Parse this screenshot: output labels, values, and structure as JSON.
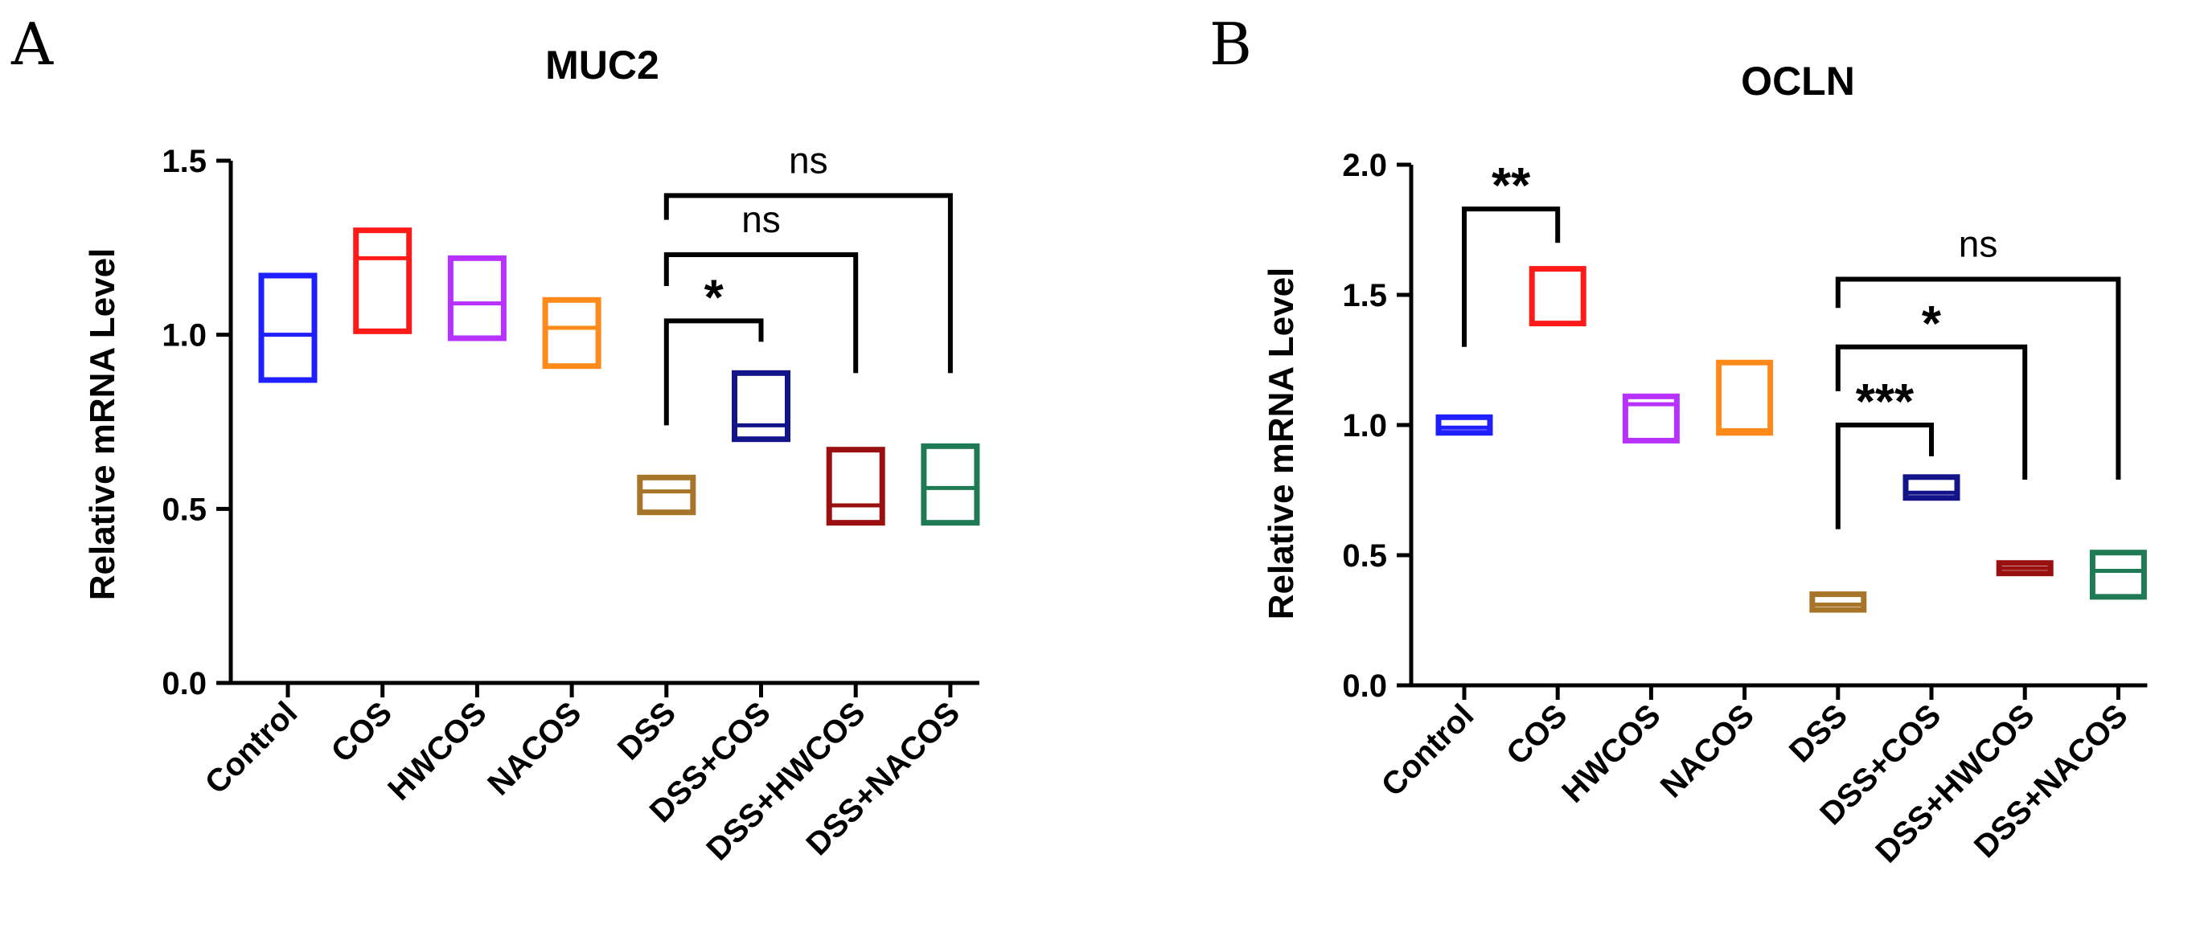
{
  "chart_data": [
    {
      "panel": "A",
      "type": "box",
      "title": "MUC2",
      "ylabel": "Relative mRNA Level",
      "xlabel": "",
      "ylim": [
        0,
        1.5
      ],
      "yticks": [
        0.0,
        0.5,
        1.0,
        1.5
      ],
      "ytick_labels": [
        "0.0",
        "0.5",
        "1.0",
        "1.5"
      ],
      "categories": [
        "Control",
        "COS",
        "HWCOS",
        "NACOS",
        "DSS",
        "DSS+COS",
        "DSS+HWCOS",
        "DSS+NACOS"
      ],
      "series": [
        {
          "name": "Control",
          "min": 0.87,
          "median": 1.0,
          "max": 1.17,
          "color": "#1f1fff"
        },
        {
          "name": "COS",
          "min": 1.01,
          "median": 1.22,
          "max": 1.3,
          "color": "#ff1a1a"
        },
        {
          "name": "HWCOS",
          "min": 0.99,
          "median": 1.09,
          "max": 1.22,
          "color": "#b832ff"
        },
        {
          "name": "NACOS",
          "min": 0.91,
          "median": 1.02,
          "max": 1.1,
          "color": "#ff8a1a"
        },
        {
          "name": "DSS",
          "min": 0.49,
          "median": 0.55,
          "max": 0.59,
          "color": "#a8742a"
        },
        {
          "name": "DSS+COS",
          "min": 0.7,
          "median": 0.74,
          "max": 0.89,
          "color": "#14148a"
        },
        {
          "name": "DSS+HWCOS",
          "min": 0.46,
          "median": 0.51,
          "max": 0.67,
          "color": "#9a0f0f"
        },
        {
          "name": "DSS+NACOS",
          "min": 0.46,
          "median": 0.56,
          "max": 0.68,
          "color": "#1e7a52"
        }
      ],
      "significance": [
        {
          "from": "DSS",
          "to": "DSS+COS",
          "label": "*",
          "y": 1.04,
          "left_end": 0.74,
          "right_end": 0.98
        },
        {
          "from": "DSS",
          "to": "DSS+HWCOS",
          "label": "ns",
          "y": 1.23,
          "left_end": 1.14,
          "right_end": 0.89
        },
        {
          "from": "DSS",
          "to": "DSS+NACOS",
          "label": "ns",
          "y": 1.4,
          "left_end": 1.33,
          "right_end": 0.89
        }
      ]
    },
    {
      "panel": "B",
      "type": "box",
      "title": "OCLN",
      "ylabel": "Relative mRNA Level",
      "xlabel": "",
      "ylim": [
        0,
        2.0
      ],
      "yticks": [
        0.0,
        0.5,
        1.0,
        1.5,
        2.0
      ],
      "ytick_labels": [
        "0.0",
        "0.5",
        "1.0",
        "1.5",
        "2.0"
      ],
      "categories": [
        "Control",
        "COS",
        "HWCOS",
        "NACOS",
        "DSS",
        "DSS+COS",
        "DSS+HWCOS",
        "DSS+NACOS"
      ],
      "series": [
        {
          "name": "Control",
          "min": 0.97,
          "median": 0.99,
          "max": 1.03,
          "color": "#1f1fff"
        },
        {
          "name": "COS",
          "min": 1.39,
          "median": 1.6,
          "max": 1.6,
          "color": "#ff1a1a"
        },
        {
          "name": "HWCOS",
          "min": 0.94,
          "median": 1.08,
          "max": 1.11,
          "color": "#b832ff"
        },
        {
          "name": "NACOS",
          "min": 0.97,
          "median": 0.98,
          "max": 1.24,
          "color": "#ff8a1a"
        },
        {
          "name": "DSS",
          "min": 0.29,
          "median": 0.31,
          "max": 0.35,
          "color": "#a8742a"
        },
        {
          "name": "DSS+COS",
          "min": 0.72,
          "median": 0.74,
          "max": 0.8,
          "color": "#14148a"
        },
        {
          "name": "DSS+HWCOS",
          "min": 0.43,
          "median": 0.45,
          "max": 0.47,
          "color": "#9a0f0f"
        },
        {
          "name": "DSS+NACOS",
          "min": 0.34,
          "median": 0.44,
          "max": 0.51,
          "color": "#1e7a52"
        }
      ],
      "significance": [
        {
          "from": "Control",
          "to": "COS",
          "label": "**",
          "y": 1.83,
          "left_end": 1.3,
          "right_end": 1.7
        },
        {
          "from": "DSS",
          "to": "DSS+COS",
          "label": "***",
          "y": 1.0,
          "left_end": 0.6,
          "right_end": 0.88
        },
        {
          "from": "DSS",
          "to": "DSS+HWCOS",
          "label": "*",
          "y": 1.3,
          "left_end": 1.13,
          "right_end": 0.79
        },
        {
          "from": "DSS",
          "to": "DSS+NACOS",
          "label": "ns",
          "y": 1.56,
          "left_end": 1.45,
          "right_end": 0.79
        }
      ]
    }
  ]
}
